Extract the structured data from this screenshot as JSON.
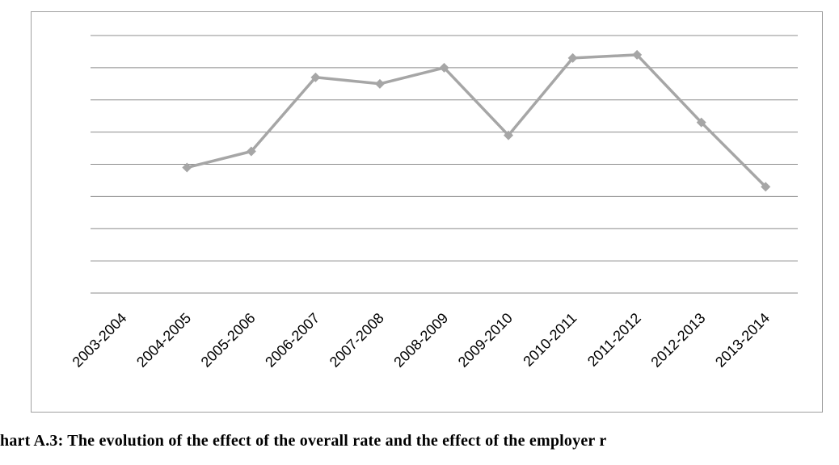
{
  "caption": "hart A.3: The evolution of the effect of the overall rate and the effect of the employer r",
  "chart_data": {
    "type": "line",
    "title": "",
    "xlabel": "",
    "ylabel": "",
    "categories": [
      "2003-2004",
      "2004-2005",
      "2005-2006",
      "2006-2007",
      "2007-2008",
      "2008-2009",
      "2009-2010",
      "2010-2011",
      "2011-2012",
      "2012-2013",
      "2013-2014"
    ],
    "series": [
      {
        "values": [
          null,
          3.9,
          4.4,
          6.7,
          6.5,
          7.0,
          4.9,
          7.3,
          7.4,
          5.3,
          3.3
        ],
        "color": "#a6a6a6",
        "marker": "diamond"
      }
    ],
    "ylim": [
      0,
      8
    ],
    "gridlines": 9,
    "grid": true,
    "legend": "none",
    "show_y_tick_labels": false
  }
}
